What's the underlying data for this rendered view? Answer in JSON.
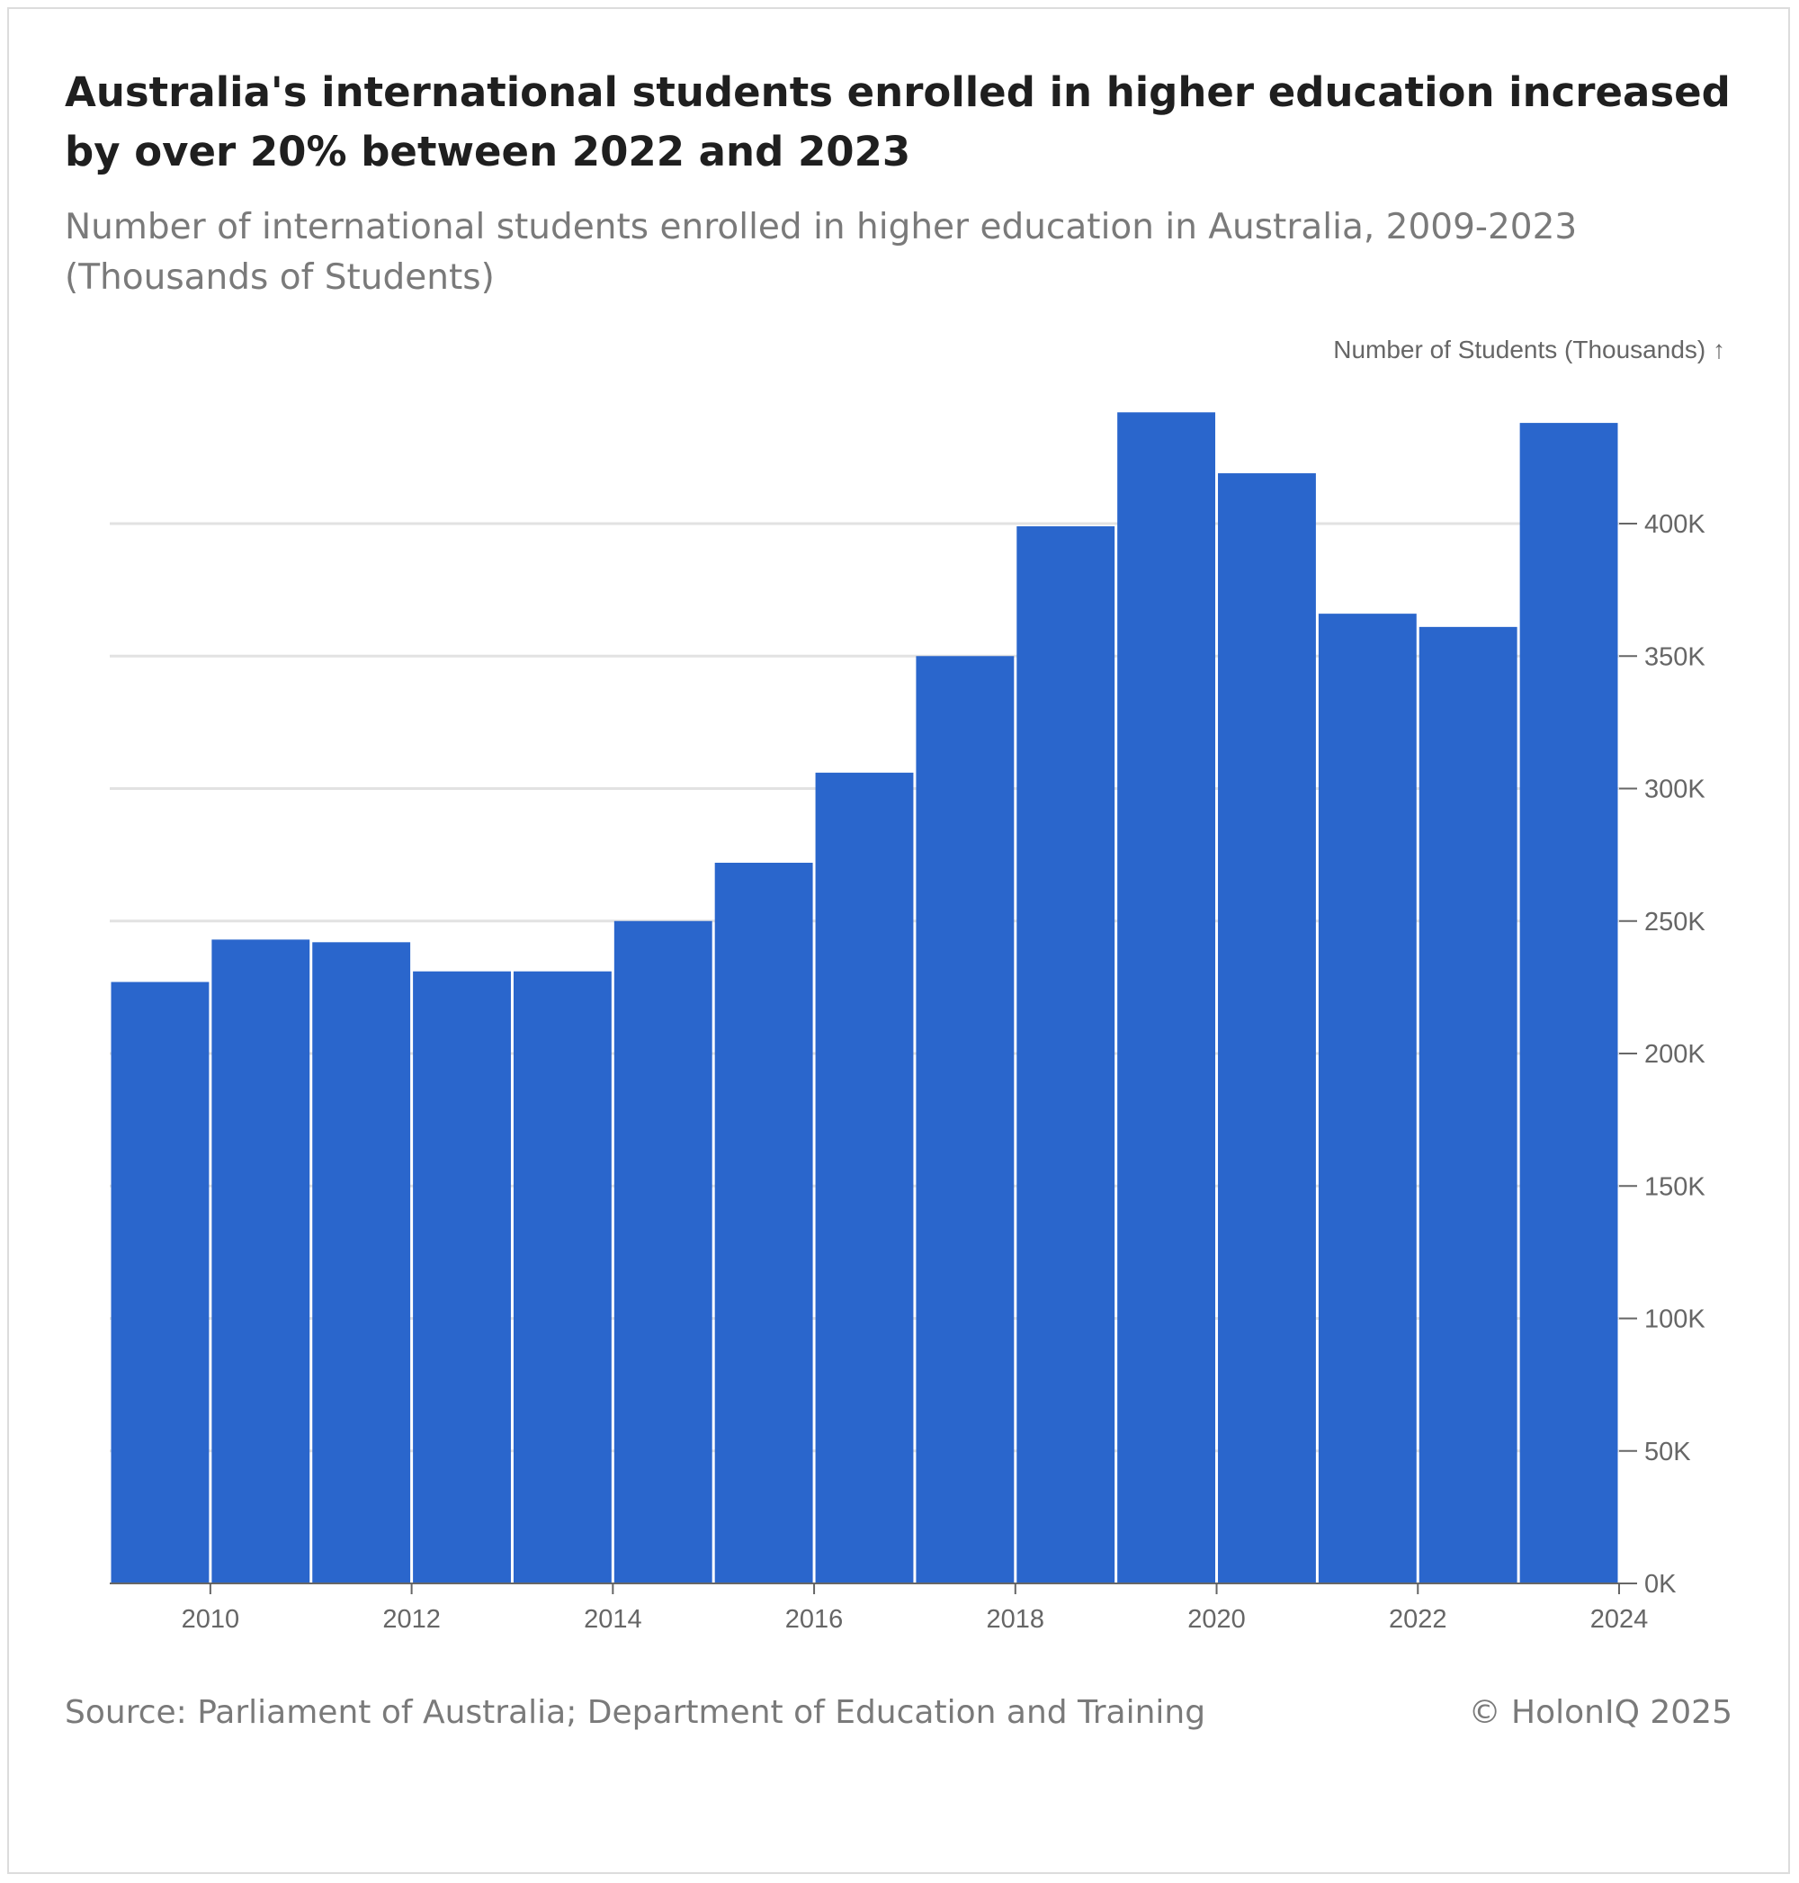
{
  "title": "Australia's international students enrolled in higher education increased by over 20% between 2022 and 2023",
  "subtitle": "Number of international students enrolled in higher education in Australia, 2009-2023 (Thousands of Students)",
  "source": "Source: Parliament of Australia; Department of Education and Training",
  "credit": "© HolonIQ 2025",
  "colors": {
    "bar": "#2a66cc",
    "grid": "#e2e2e2",
    "axis": "#666666",
    "axis_text": "#666666"
  },
  "chart_data": {
    "type": "bar",
    "title": "Australia's international students enrolled in higher education increased by over 20% between 2022 and 2023",
    "subtitle": "Number of international students enrolled in higher education in Australia, 2009-2023 (Thousands of Students)",
    "ylabel": "Number of Students (Thousands) ↑",
    "xlabel": "",
    "categories": [
      "2009",
      "2010",
      "2011",
      "2012",
      "2013",
      "2014",
      "2015",
      "2016",
      "2017",
      "2018",
      "2019",
      "2020",
      "2021",
      "2022",
      "2023"
    ],
    "values": [
      227,
      243,
      242,
      231,
      231,
      250,
      272,
      306,
      350,
      399,
      442,
      419,
      366,
      361,
      438
    ],
    "xlim": [
      2009,
      2024
    ],
    "ylim": [
      0,
      440
    ],
    "y_axis_position": "right",
    "x_ticks": [
      2010,
      2012,
      2014,
      2016,
      2018,
      2020,
      2022,
      2024
    ],
    "x_tick_labels": [
      "2010",
      "2012",
      "2014",
      "2016",
      "2018",
      "2020",
      "2022",
      "2024"
    ],
    "y_ticks": [
      0,
      50,
      100,
      150,
      200,
      250,
      300,
      350,
      400
    ],
    "y_tick_labels": [
      "0K",
      "50K",
      "100K",
      "150K",
      "200K",
      "250K",
      "300K",
      "350K",
      "400K"
    ],
    "grid": true
  }
}
